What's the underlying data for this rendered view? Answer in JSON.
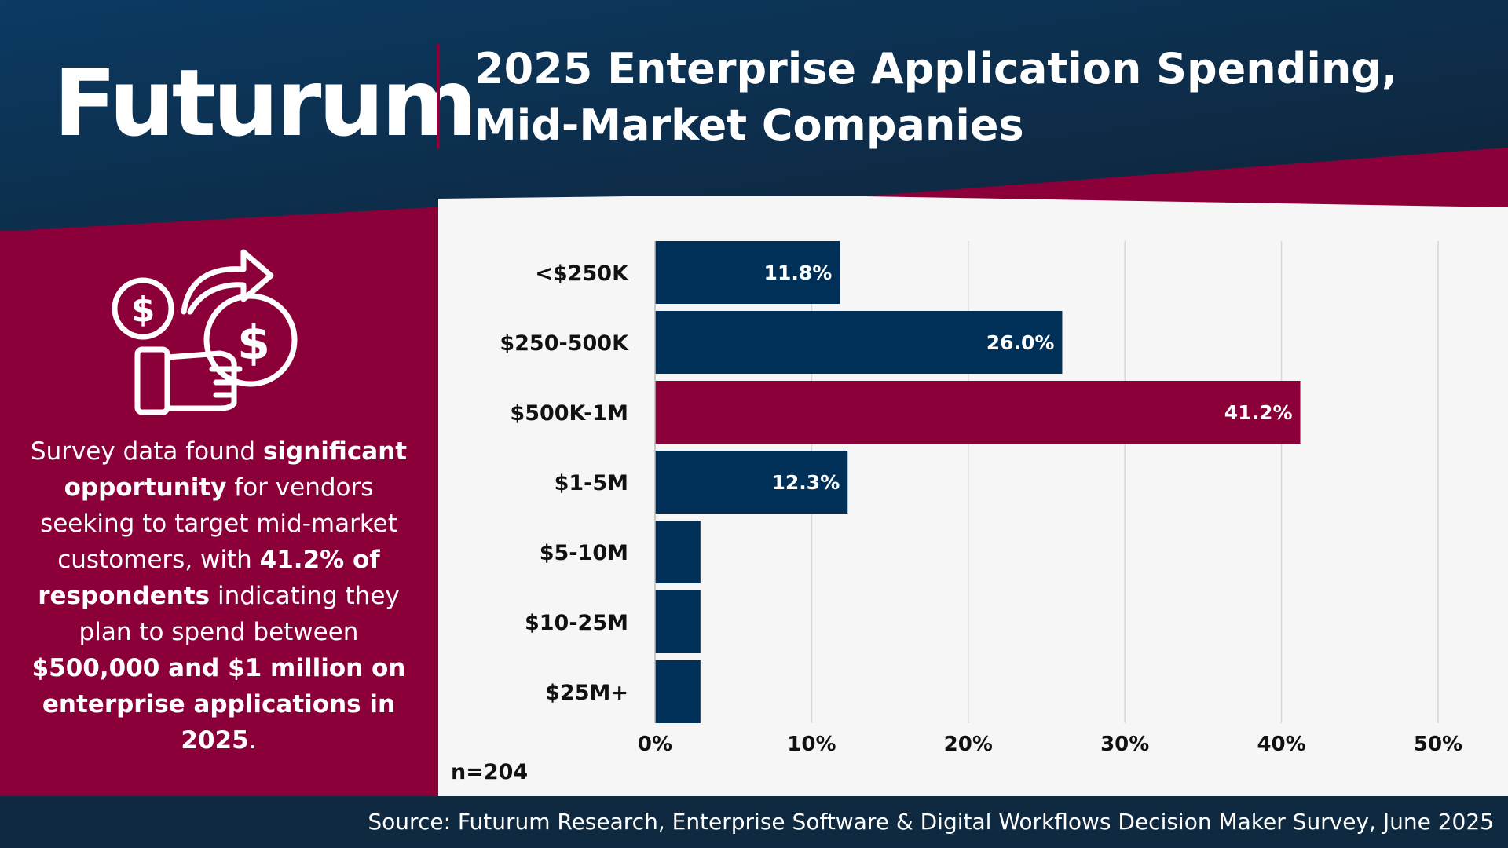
{
  "header": {
    "logo": "Futurum",
    "title": "2025 Enterprise Application Spending, Mid-Market Companies"
  },
  "sidebar": {
    "icon": "hand-holding-dollar-coins-icon",
    "text_parts": [
      {
        "t": "Survey data found ",
        "b": false
      },
      {
        "t": "significant opportunity",
        "b": true
      },
      {
        "t": " for vendors seeking to target mid-market customers, with ",
        "b": false
      },
      {
        "t": "41.2% of respondents",
        "b": true
      },
      {
        "t": " indicating they plan to spend between ",
        "b": false
      },
      {
        "t": "$500,000 and $1 million on enterprise applications in 2025",
        "b": true
      },
      {
        "t": ".",
        "b": false
      }
    ]
  },
  "chart_data": {
    "type": "bar",
    "orientation": "horizontal",
    "categories": [
      "<$250K",
      "$250-500K",
      "$500K-1M",
      "$1-5M",
      "$5-10M",
      "$10-25M",
      "$25M+"
    ],
    "values": [
      11.8,
      26.0,
      41.2,
      12.3,
      2.9,
      2.9,
      2.9
    ],
    "data_labels": [
      "11.8%",
      "26.0%",
      "41.2%",
      "12.3%",
      "",
      "",
      ""
    ],
    "xlim": [
      0,
      50
    ],
    "xticks": [
      "0%",
      "10%",
      "20%",
      "30%",
      "40%",
      "50%"
    ],
    "grid": "vertical",
    "highlight_index": 2,
    "colors": {
      "default": "#003057",
      "highlight": "#8c0039"
    },
    "note": "n=204"
  },
  "footer": {
    "source": "Source: Futurum Research, Enterprise Software & Digital Workflows Decision Maker Survey, June 2025"
  },
  "colors": {
    "navy": "#0b3558",
    "maroon": "#8c0039",
    "background": "#f6f6f6"
  }
}
